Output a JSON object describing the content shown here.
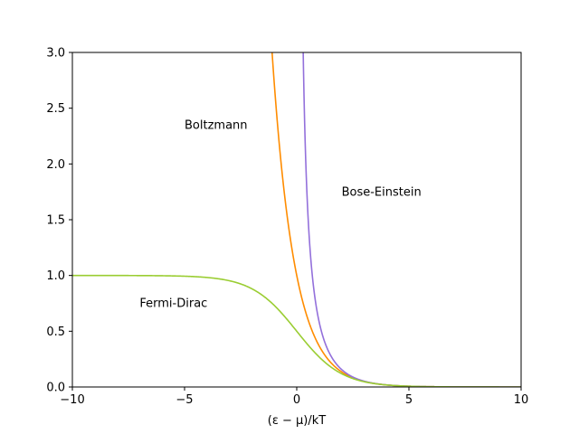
{
  "chart_data": {
    "type": "line",
    "xlabel": "(ε − μ)/kT",
    "ylabel": "",
    "xlim": [
      -10,
      10
    ],
    "ylim": [
      0,
      3.0
    ],
    "x_ticks": [
      -10,
      -5,
      0,
      5,
      10
    ],
    "x_tick_labels": [
      "−10",
      "−5",
      "0",
      "5",
      "10"
    ],
    "y_ticks": [
      0,
      0.5,
      1.0,
      1.5,
      2.0,
      2.5,
      3.0
    ],
    "y_tick_labels": [
      "0.0",
      "0.5",
      "1.0",
      "1.5",
      "2.0",
      "2.5",
      "3.0"
    ],
    "grid": false,
    "series": [
      {
        "name": "Boltzmann",
        "function": "exp(-x)",
        "color": "#ff8c00"
      },
      {
        "name": "Bose-Einstein",
        "function": "1/(exp(x)-1)",
        "color": "#9370db"
      },
      {
        "name": "Fermi-Dirac",
        "function": "1/(exp(x)+1)",
        "color": "#9acd32"
      }
    ],
    "annotations": [
      {
        "text": "Boltzmann",
        "x": -5,
        "y": 2.3
      },
      {
        "text": "Bose-Einstein",
        "x": 2,
        "y": 1.7
      },
      {
        "text": "Fermi-Dirac",
        "x": -7,
        "y": 0.7
      }
    ]
  }
}
